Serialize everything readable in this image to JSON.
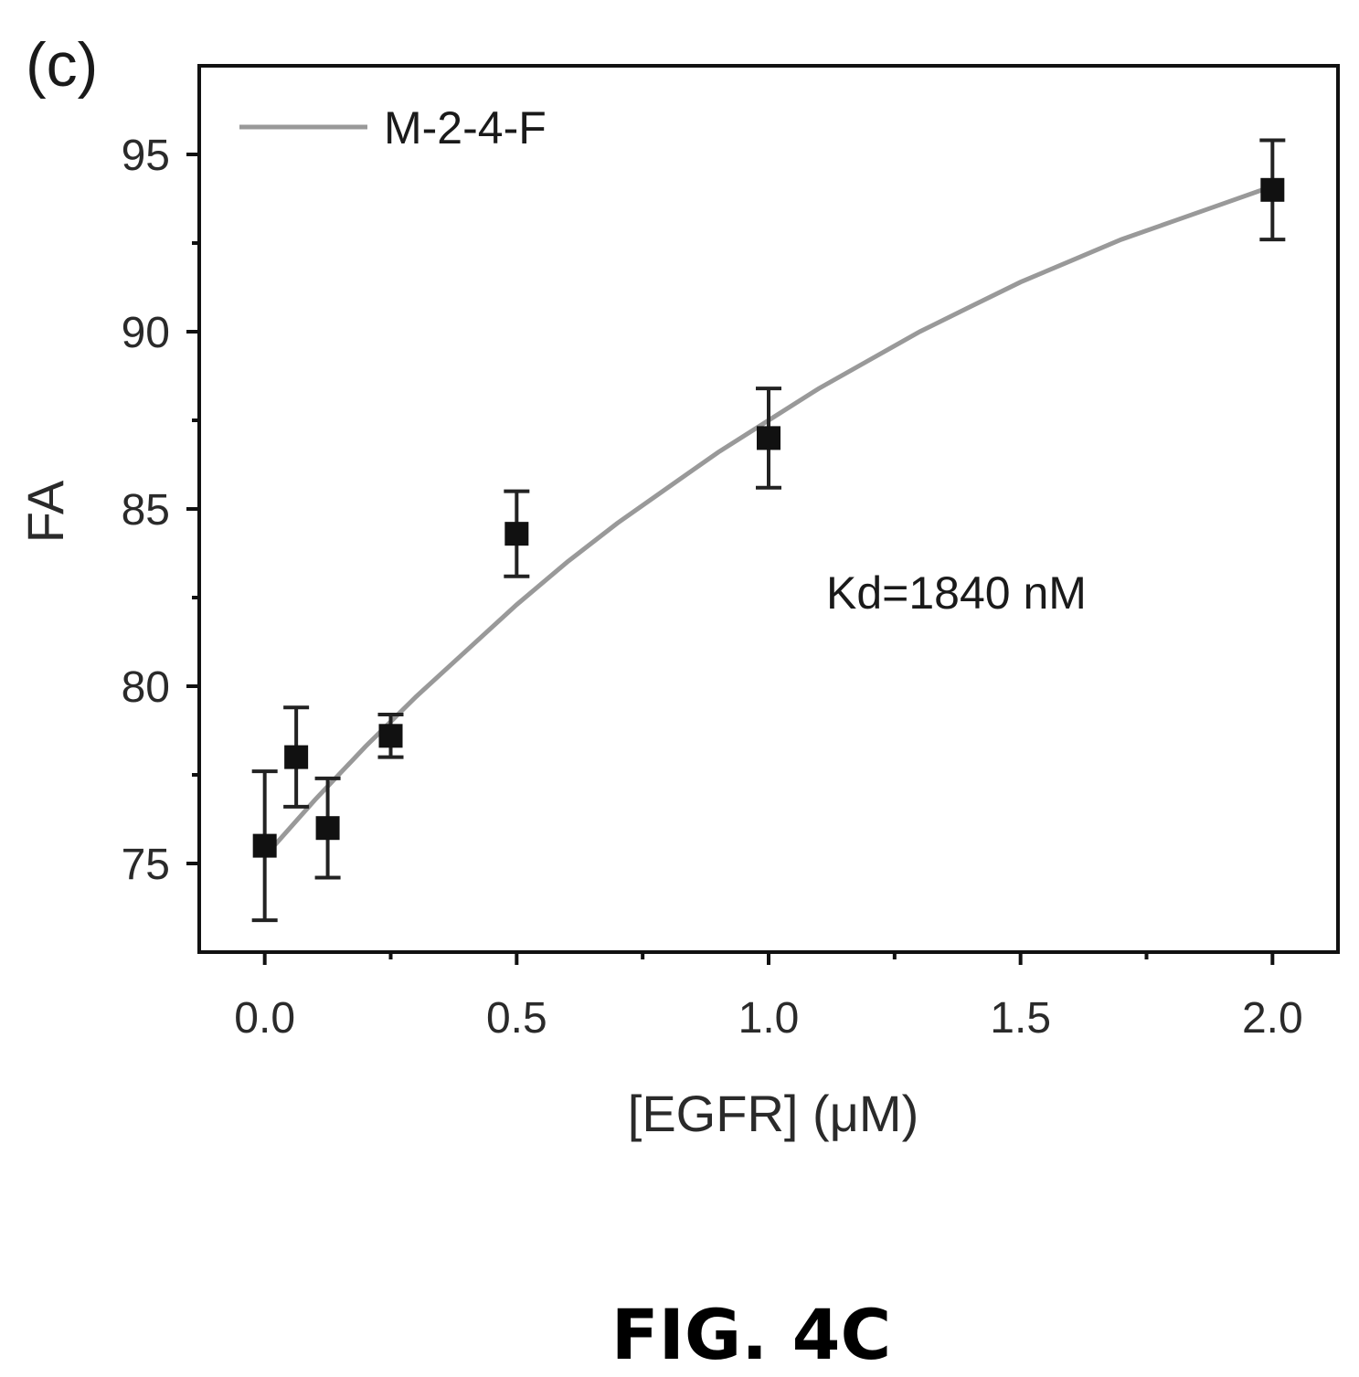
{
  "panel_label": "(c)",
  "figure_caption": "FIG. 4C",
  "annotation": "Kd=1840 nM",
  "chart_data": {
    "type": "scatter",
    "title": "",
    "xlabel": "[EGFR] (μM)",
    "ylabel": "FA",
    "xlim": [
      -0.13,
      2.13
    ],
    "ylim": [
      72.5,
      97.5
    ],
    "x_ticks": [
      0.0,
      0.5,
      1.0,
      1.5,
      2.0
    ],
    "x_tick_labels": [
      "0.0",
      "0.5",
      "1.0",
      "1.5",
      "2.0"
    ],
    "x_minor_ticks": [
      0.25,
      0.75,
      1.25,
      1.75
    ],
    "y_ticks": [
      75,
      80,
      85,
      90,
      95
    ],
    "y_tick_labels": [
      "75",
      "80",
      "85",
      "90",
      "95"
    ],
    "y_minor_ticks": [
      77.5,
      82.5,
      87.5,
      92.5
    ],
    "grid": false,
    "legend_position": "top-left",
    "series": [
      {
        "name": "M-2-4-F",
        "kind": "fit-line",
        "color": "#999999",
        "x": [
          0.0,
          0.1,
          0.2,
          0.3,
          0.4,
          0.5,
          0.6,
          0.7,
          0.8,
          0.9,
          1.0,
          1.1,
          1.2,
          1.3,
          1.4,
          1.5,
          1.6,
          1.7,
          1.8,
          1.9,
          2.0
        ],
        "y": [
          75.2,
          76.8,
          78.3,
          79.7,
          81.0,
          82.3,
          83.5,
          84.6,
          85.6,
          86.6,
          87.5,
          88.4,
          89.2,
          90.0,
          90.7,
          91.4,
          92.0,
          92.6,
          93.1,
          93.6,
          94.1
        ]
      },
      {
        "name": "data",
        "kind": "points",
        "color": "#111111",
        "x": [
          0.0,
          0.0625,
          0.125,
          0.25,
          0.5,
          1.0,
          2.0
        ],
        "y": [
          75.5,
          78.0,
          76.0,
          78.6,
          84.3,
          87.0,
          94.0
        ],
        "y_err": [
          2.1,
          1.4,
          1.4,
          0.6,
          1.2,
          1.4,
          1.4
        ]
      }
    ]
  }
}
